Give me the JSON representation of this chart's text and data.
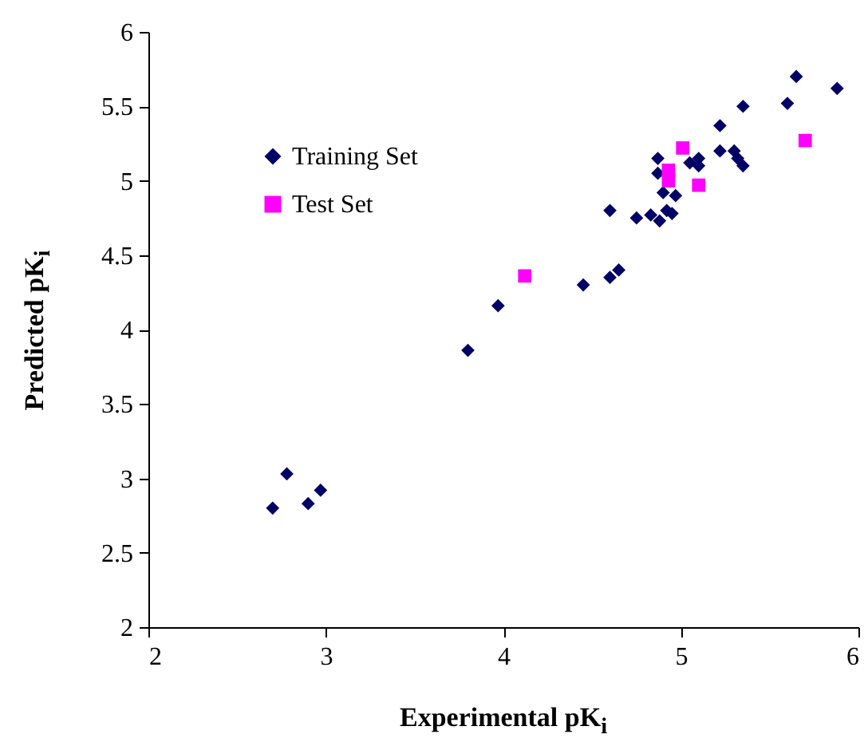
{
  "chart_data": {
    "type": "scatter",
    "xlabel": "Experimental pK$_{i}$",
    "ylabel": "Predicted pK$_{i}$",
    "xlim": [
      2,
      6
    ],
    "ylim": [
      2,
      6
    ],
    "xticks": [
      2,
      3,
      4,
      5,
      6
    ],
    "yticks": [
      2,
      2.5,
      3,
      3.5,
      4,
      4.5,
      5,
      5.5,
      6
    ],
    "grid": false,
    "legend": "top left",
    "series": [
      {
        "name": "Training Set",
        "color": "#000066",
        "marker": "diamond",
        "x": [
          2.7,
          2.78,
          2.9,
          2.97,
          3.8,
          3.97,
          4.45,
          4.6,
          4.65,
          4.6,
          4.75,
          4.83,
          4.88,
          4.92,
          4.95,
          4.9,
          4.97,
          4.87,
          4.87,
          5.05,
          5.1,
          5.1,
          5.22,
          5.22,
          5.3,
          5.32,
          5.35,
          5.35,
          5.6,
          5.65,
          5.88
        ],
        "values": [
          2.8,
          3.03,
          2.83,
          2.92,
          3.86,
          4.16,
          4.3,
          4.35,
          4.4,
          4.8,
          4.75,
          4.77,
          4.73,
          4.8,
          4.78,
          4.92,
          4.9,
          5.15,
          5.05,
          5.12,
          5.1,
          5.15,
          5.2,
          5.37,
          5.2,
          5.15,
          5.1,
          5.5,
          5.52,
          5.7,
          5.62
        ]
      },
      {
        "name": "Test Set",
        "color": "#ff00ff",
        "marker": "square",
        "x": [
          4.12,
          4.93,
          4.93,
          5.01,
          5.1,
          5.7
        ],
        "values": [
          4.36,
          5.0,
          5.07,
          5.22,
          4.97,
          5.27
        ]
      }
    ]
  }
}
